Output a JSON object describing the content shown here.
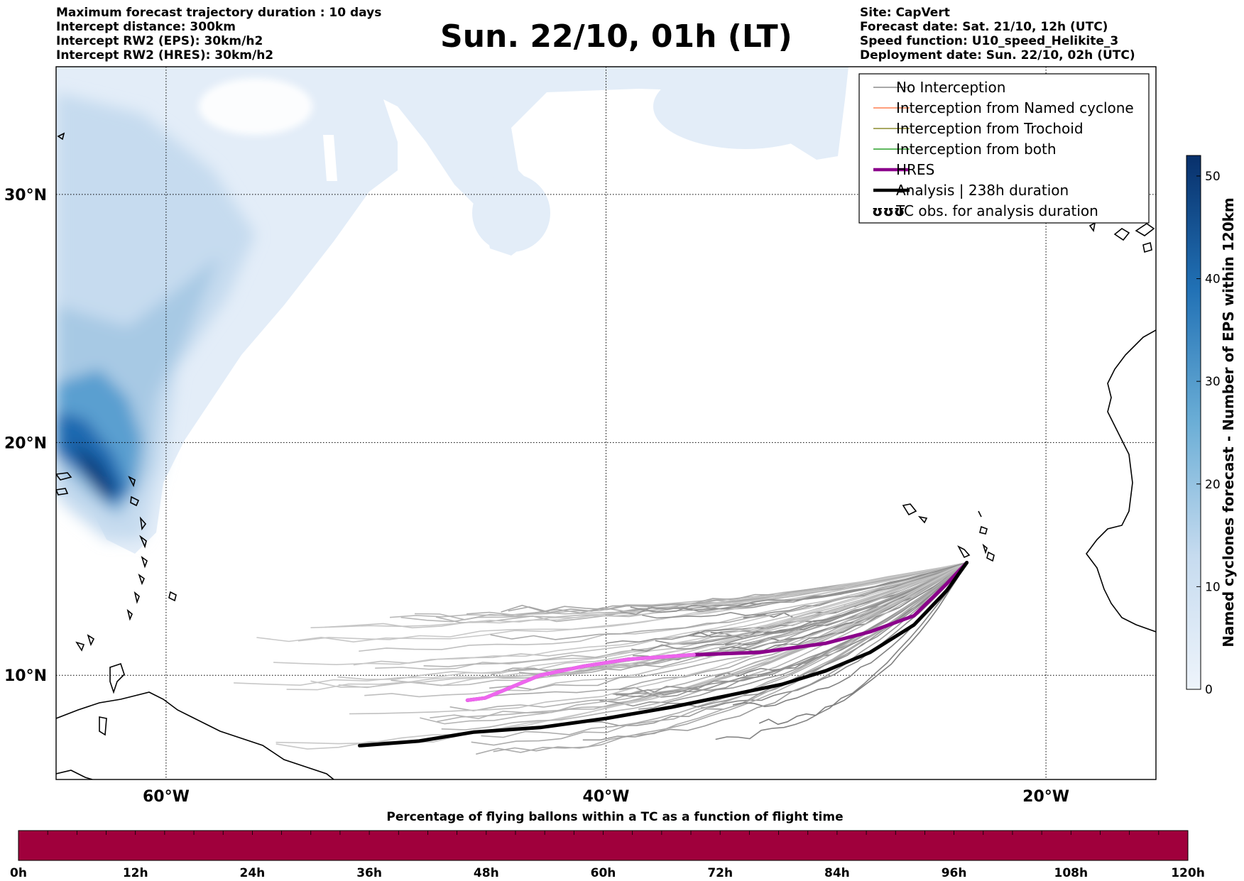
{
  "title": "Sun. 22/10, 01h (LT)",
  "header_left": [
    "Maximum forecast trajectory duration : 10 days",
    "Intercept distance: 300km",
    "Intercept RW2 (EPS):  30km/h2",
    "Intercept RW2 (HRES): 30km/h2"
  ],
  "header_right": [
    "Site: CapVert",
    "Forecast date: Sat. 21/10, 12h (UTC)",
    "Speed function: U10_speed_Helikite_3",
    "Deployment date: Sun. 22/10, 02h (UTC)"
  ],
  "map": {
    "lon_labels": [
      {
        "lon": -60,
        "text": "60°W"
      },
      {
        "lon": -40,
        "text": "40°W"
      },
      {
        "lon": -20,
        "text": "20°W"
      }
    ],
    "lat_labels": [
      {
        "lat": 30,
        "text": "30°N"
      },
      {
        "lat": 20,
        "text": "20°N"
      },
      {
        "lat": 10,
        "text": "10°N"
      }
    ],
    "lon_range": [
      -65,
      -15
    ],
    "lat_range": [
      5.4,
      34.8
    ],
    "grid": "dotted"
  },
  "legend": {
    "placement": "top-right",
    "items": [
      {
        "label": "No Interception",
        "color": "#8c8c8c"
      },
      {
        "label": "Interception from Named cyclone",
        "color": "#ff7f50"
      },
      {
        "label": "Interception from Trochoid",
        "color": "#8b8b2e"
      },
      {
        "label": "Interception from both",
        "color": "#2ca02c"
      },
      {
        "label": "HRES",
        "color": "#8b008b"
      },
      {
        "label": "Analysis | 238h duration",
        "color": "#000000"
      },
      {
        "label": "TC obs. for analysis duration",
        "icon": "tc-symbol-icon",
        "symbol": "ʊʊʊ"
      }
    ]
  },
  "colorbar": {
    "label": "Named cyclones forecast - Number of EPS within 120km",
    "ticks": [
      "0",
      "10",
      "20",
      "30",
      "40",
      "50"
    ],
    "min": 0,
    "max": 52,
    "color_low": "#e8f1fa",
    "color_high": "#08306b"
  },
  "time_bar": {
    "title": "Percentage of flying ballons within a TC as a function of flight time",
    "ticks": [
      "0h",
      "12h",
      "24h",
      "36h",
      "48h",
      "60h",
      "72h",
      "84h",
      "96h",
      "108h",
      "120h"
    ],
    "color": "#a0003c",
    "percent_values": [
      0,
      0,
      0,
      0,
      0,
      0,
      0,
      0,
      0,
      0,
      0
    ]
  },
  "trajectories": {
    "deployment": {
      "lon": -23.6,
      "lat": 14.9
    },
    "hres": [
      [
        -23.6,
        14.9
      ],
      [
        -24.5,
        14.0
      ],
      [
        -26,
        12.6
      ],
      [
        -28,
        11.9
      ],
      [
        -30,
        11.4
      ],
      [
        -33,
        11.0
      ],
      [
        -36,
        10.9
      ],
      [
        -39,
        10.7
      ],
      [
        -41,
        10.4
      ],
      [
        -43,
        10.0
      ],
      [
        -44.5,
        9.4
      ],
      [
        -45.5,
        9.0
      ],
      [
        -46.3,
        8.9
      ]
    ],
    "analysis": [
      [
        -23.6,
        14.9
      ],
      [
        -24.5,
        13.7
      ],
      [
        -26,
        12.2
      ],
      [
        -28,
        11.0
      ],
      [
        -30,
        10.2
      ],
      [
        -32,
        9.6
      ],
      [
        -34,
        9.2
      ],
      [
        -37,
        8.6
      ],
      [
        -40,
        8.1
      ],
      [
        -43,
        7.7
      ],
      [
        -46,
        7.5
      ],
      [
        -48.5,
        7.1
      ],
      [
        -51.2,
        6.9
      ]
    ]
  }
}
